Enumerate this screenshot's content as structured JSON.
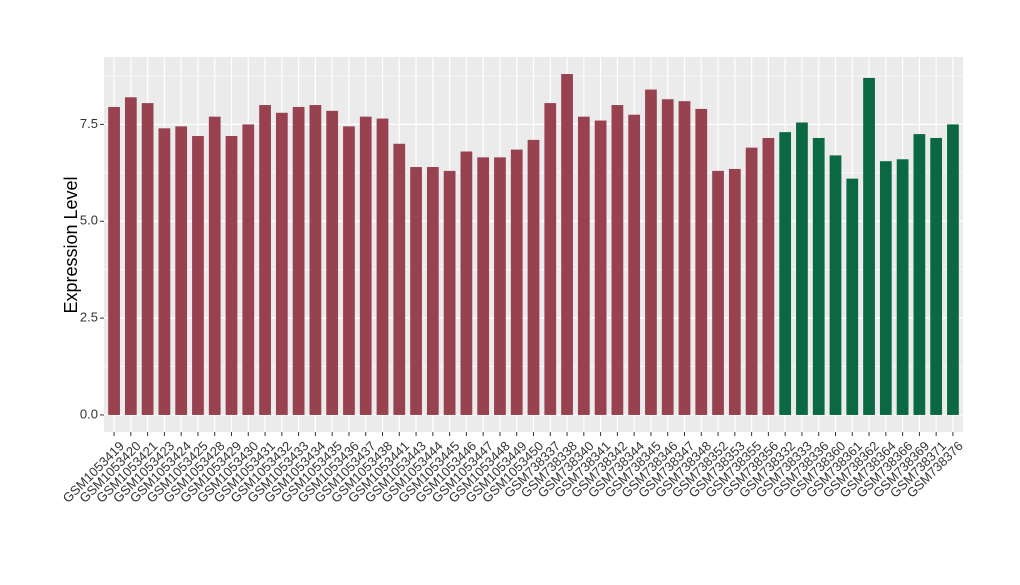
{
  "chart_data": {
    "type": "bar",
    "y_label": "Expression Level",
    "categories": [
      "GSM1053419",
      "GSM1053420",
      "GSM1053421",
      "GSM1053423",
      "GSM1053424",
      "GSM1053425",
      "GSM1053428",
      "GSM1053429",
      "GSM1053430",
      "GSM1053431",
      "GSM1053432",
      "GSM1053433",
      "GSM1053434",
      "GSM1053435",
      "GSM1053436",
      "GSM1053437",
      "GSM1053438",
      "GSM1053441",
      "GSM1053443",
      "GSM1053444",
      "GSM1053445",
      "GSM1053446",
      "GSM1053447",
      "GSM1053448",
      "GSM1053449",
      "GSM1053450",
      "GSM738337",
      "GSM738338",
      "GSM738340",
      "GSM738341",
      "GSM738342",
      "GSM738344",
      "GSM738345",
      "GSM738346",
      "GSM738347",
      "GSM738348",
      "GSM738352",
      "GSM738353",
      "GSM738355",
      "GSM738356",
      "GSM738332",
      "GSM738333",
      "GSM738336",
      "GSM738360",
      "GSM738361",
      "GSM738362",
      "GSM738364",
      "GSM738366",
      "GSM738369",
      "GSM738371",
      "GSM738376"
    ],
    "values": [
      7.95,
      8.2,
      8.05,
      7.4,
      7.45,
      7.2,
      7.7,
      7.2,
      7.5,
      8.0,
      7.8,
      7.95,
      8.0,
      7.85,
      7.45,
      7.7,
      7.65,
      7.0,
      6.4,
      6.4,
      6.3,
      6.8,
      6.65,
      6.65,
      6.85,
      7.1,
      8.05,
      8.8,
      7.7,
      7.6,
      8.0,
      7.75,
      8.4,
      8.15,
      8.1,
      7.9,
      6.3,
      6.35,
      6.9,
      7.15,
      7.3,
      7.55,
      7.15,
      6.7,
      6.1,
      8.7,
      6.55,
      6.6,
      7.25,
      7.15,
      7.5
    ],
    "colors": [
      "#984250",
      "#984250",
      "#984250",
      "#984250",
      "#984250",
      "#984250",
      "#984250",
      "#984250",
      "#984250",
      "#984250",
      "#984250",
      "#984250",
      "#984250",
      "#984250",
      "#984250",
      "#984250",
      "#984250",
      "#984250",
      "#984250",
      "#984250",
      "#984250",
      "#984250",
      "#984250",
      "#984250",
      "#984250",
      "#984250",
      "#984250",
      "#984250",
      "#984250",
      "#984250",
      "#984250",
      "#984250",
      "#984250",
      "#984250",
      "#984250",
      "#984250",
      "#984250",
      "#984250",
      "#984250",
      "#984250",
      "#0a6842",
      "#0a6842",
      "#0a6842",
      "#0a6842",
      "#0a6842",
      "#0a6842",
      "#0a6842",
      "#0a6842",
      "#0a6842",
      "#0a6842",
      "#0a6842"
    ],
    "ylim": [
      -0.44,
      9.24
    ],
    "yticks": [
      {
        "value": 0,
        "label": "0.0"
      },
      {
        "value": 2.5,
        "label": "2.5"
      },
      {
        "value": 5,
        "label": "5.0"
      },
      {
        "value": 7.5,
        "label": "7.5"
      }
    ],
    "grid": true
  }
}
